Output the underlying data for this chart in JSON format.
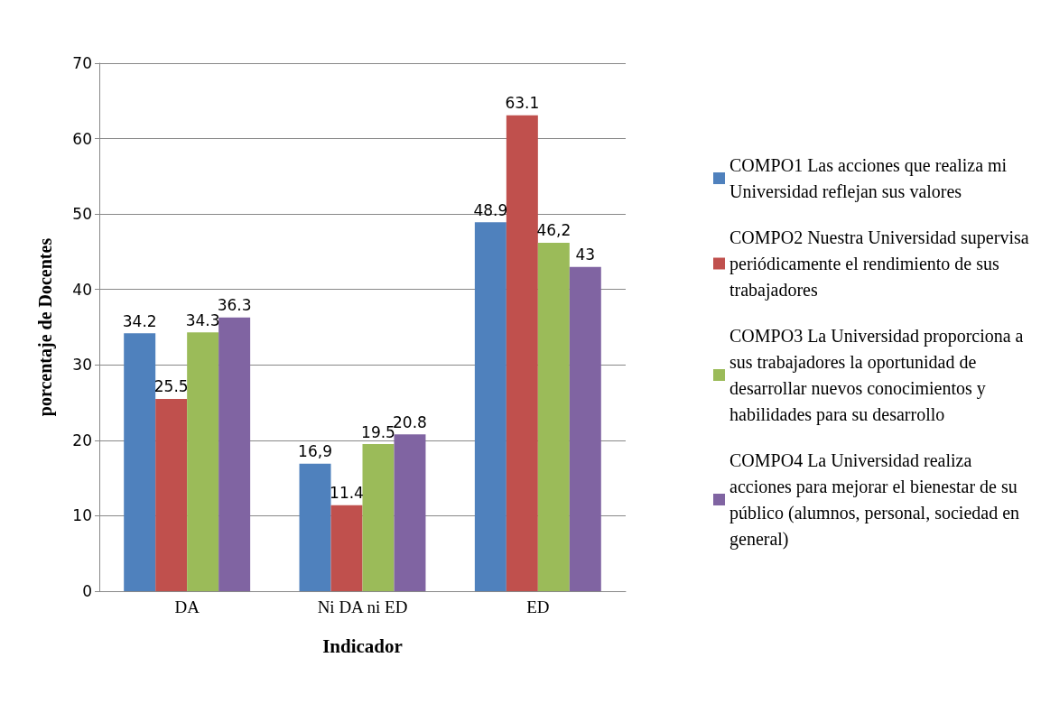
{
  "chart_data": {
    "type": "bar",
    "xlabel": "Indicador",
    "ylabel": "porcentaje de Docentes",
    "categories": [
      "DA",
      "Ni DA ni ED",
      "ED"
    ],
    "series": [
      {
        "name": "COMPO1 Las acciones que realiza mi Universidad reflejan sus valores",
        "color": "#4f81bd",
        "values": [
          34.2,
          16.9,
          48.9
        ],
        "value_labels": [
          "34.2",
          "16,9",
          "48.9"
        ]
      },
      {
        "name": "COMPO2 Nuestra Universidad supervisa periódicamente el rendimiento de sus trabajadores",
        "color": "#c0504d",
        "values": [
          25.5,
          11.4,
          63.1
        ],
        "value_labels": [
          "25.5",
          "11.4",
          "63.1"
        ]
      },
      {
        "name": "COMPO3 La Universidad proporciona a sus trabajadores la oportunidad de desarrollar nuevos conocimientos y habilidades para su desarrollo",
        "color": "#9bbb59",
        "values": [
          34.3,
          19.5,
          46.2
        ],
        "value_labels": [
          "34.3",
          "19.5",
          "46,2"
        ]
      },
      {
        "name": "COMPO4 La Universidad realiza acciones para mejorar el bienestar de su público (alumnos, personal, sociedad en general)",
        "color": "#8064a2",
        "values": [
          36.3,
          20.8,
          43
        ],
        "value_labels": [
          "36.3",
          "20.8",
          "43"
        ]
      }
    ],
    "ylim": [
      0,
      70
    ],
    "yticks": [
      0,
      10,
      20,
      30,
      40,
      50,
      60,
      70
    ],
    "grid": "y",
    "legend": "right"
  }
}
